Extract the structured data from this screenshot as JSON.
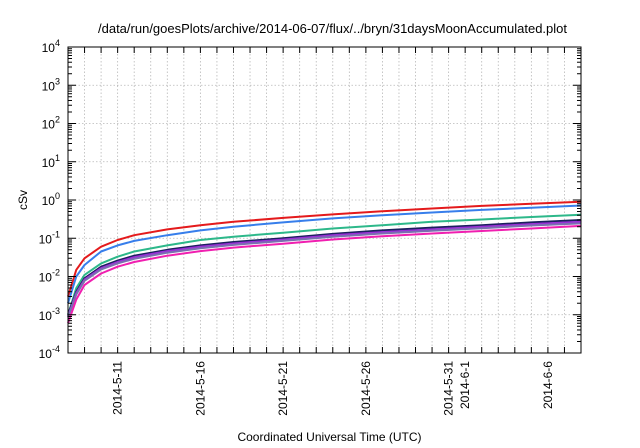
{
  "chart_data": {
    "type": "line",
    "title": "/data/run/goesPlots/archive/2014-06-07/flux/../bryn/31daysMoonAccumulated.plot",
    "xlabel": "Coordinated Universal Time (UTC)",
    "ylabel": "cSv",
    "y_scale": "log",
    "ylim": [
      0.0001,
      10000
    ],
    "y_ticks": [
      {
        "value": 0.0001,
        "base": "10",
        "exp": "-4"
      },
      {
        "value": 0.001,
        "base": "10",
        "exp": "-3"
      },
      {
        "value": 0.01,
        "base": "10",
        "exp": "-2"
      },
      {
        "value": 0.1,
        "base": "10",
        "exp": "-1"
      },
      {
        "value": 1,
        "base": "10",
        "exp": "0"
      },
      {
        "value": 10,
        "base": "10",
        "exp": "1"
      },
      {
        "value": 100,
        "base": "10",
        "exp": "2"
      },
      {
        "value": 1000,
        "base": "10",
        "exp": "3"
      },
      {
        "value": 10000,
        "base": "10",
        "exp": "4"
      }
    ],
    "xlim": [
      "2014-05-08",
      "2014-06-08"
    ],
    "x_ticks": [
      {
        "value": "2014-05-11",
        "label": "2014-5-11"
      },
      {
        "value": "2014-05-16",
        "label": "2014-5-16"
      },
      {
        "value": "2014-05-21",
        "label": "2014-5-21"
      },
      {
        "value": "2014-05-26",
        "label": "2014-5-26"
      },
      {
        "value": "2014-05-31",
        "label": "2014-5-31"
      },
      {
        "value": "2014-06-01",
        "label": "2014-6-1"
      },
      {
        "value": "2014-06-06",
        "label": "2014-6-6"
      }
    ],
    "x_minor_gridlines": "daily",
    "grid": true,
    "legend": "none",
    "x": [
      "2014-05-08",
      "2014-05-08.5",
      "2014-05-09",
      "2014-05-10",
      "2014-05-11",
      "2014-05-12",
      "2014-05-14",
      "2014-05-16",
      "2014-05-18",
      "2014-05-21",
      "2014-05-24",
      "2014-05-27",
      "2014-05-30",
      "2014-06-02",
      "2014-06-05",
      "2014-06-08"
    ],
    "series": [
      {
        "color": "#e41a1c",
        "values": [
          0.003,
          0.015,
          0.03,
          0.06,
          0.09,
          0.12,
          0.17,
          0.22,
          0.27,
          0.34,
          0.42,
          0.51,
          0.6,
          0.7,
          0.8,
          0.9
        ]
      },
      {
        "color": "#377eeb",
        "values": [
          0.002,
          0.01,
          0.02,
          0.045,
          0.065,
          0.085,
          0.12,
          0.16,
          0.2,
          0.26,
          0.33,
          0.4,
          0.47,
          0.55,
          0.63,
          0.72
        ]
      },
      {
        "color": "#2db88a",
        "values": [
          0.001,
          0.005,
          0.011,
          0.022,
          0.033,
          0.045,
          0.065,
          0.09,
          0.11,
          0.14,
          0.18,
          0.22,
          0.27,
          0.31,
          0.36,
          0.41
        ]
      },
      {
        "color": "#1c1f5e",
        "values": [
          0.001,
          0.004,
          0.009,
          0.018,
          0.026,
          0.035,
          0.05,
          0.065,
          0.08,
          0.1,
          0.13,
          0.16,
          0.19,
          0.22,
          0.26,
          0.3
        ]
      },
      {
        "color": "#9b30d8",
        "values": [
          0.0009,
          0.0037,
          0.0083,
          0.0165,
          0.024,
          0.032,
          0.046,
          0.06,
          0.073,
          0.092,
          0.12,
          0.145,
          0.17,
          0.2,
          0.235,
          0.27
        ]
      },
      {
        "color": "#7a6fb0",
        "values": [
          0.00085,
          0.0034,
          0.0077,
          0.0153,
          0.022,
          0.029,
          0.042,
          0.055,
          0.067,
          0.085,
          0.11,
          0.133,
          0.157,
          0.183,
          0.215,
          0.245
        ]
      },
      {
        "color": "#f01fb0",
        "values": [
          0.0006,
          0.0025,
          0.006,
          0.012,
          0.018,
          0.024,
          0.035,
          0.046,
          0.057,
          0.072,
          0.093,
          0.113,
          0.133,
          0.155,
          0.18,
          0.21
        ]
      }
    ]
  }
}
